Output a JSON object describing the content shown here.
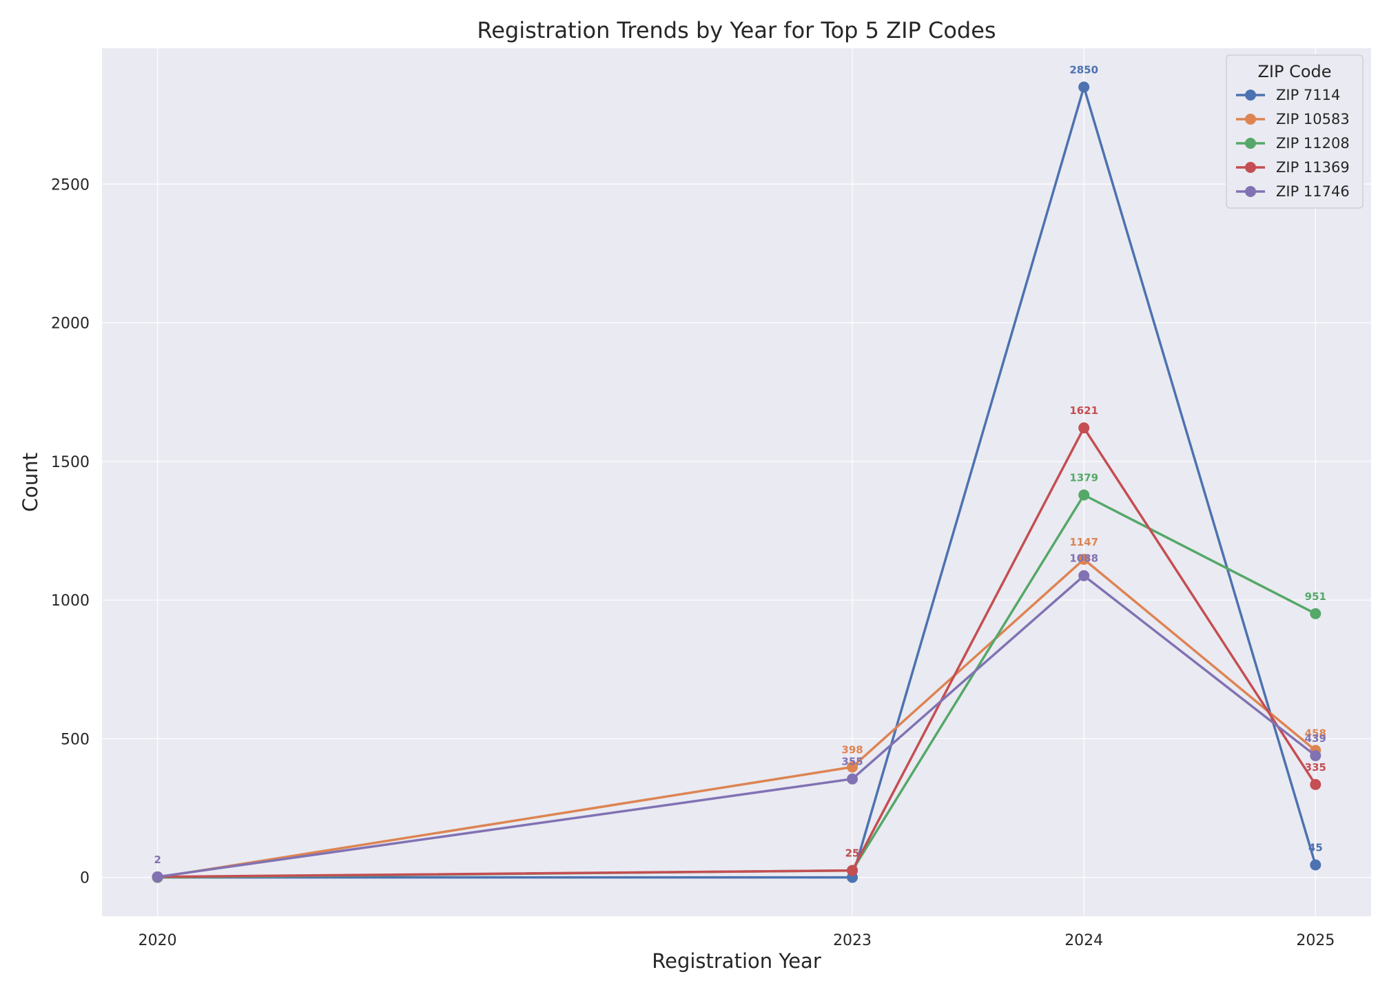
{
  "chart_data": {
    "type": "line",
    "title": "Registration Trends by Year for Top 5 ZIP Codes",
    "xlabel": "Registration Year",
    "ylabel": "Count",
    "x": [
      2020,
      2023,
      2024,
      2025
    ],
    "x_tick_labels": [
      "2020",
      "2023",
      "2024",
      "2025"
    ],
    "xlim": [
      2019.76,
      2025.24
    ],
    "ylim": [
      -140,
      2990
    ],
    "y_ticks": [
      0,
      500,
      1000,
      1500,
      2000,
      2500
    ],
    "y_tick_labels": [
      "0",
      "500",
      "1000",
      "1500",
      "2000",
      "2500"
    ],
    "grid": true,
    "legend": {
      "title": "ZIP Code",
      "position": "top-right"
    },
    "series": [
      {
        "name": "ZIP 7114",
        "color": "#4c72b0",
        "x": [
          2020,
          2023,
          2024,
          2025
        ],
        "values": [
          0,
          0,
          2850,
          45
        ],
        "labels": [
          "",
          "",
          "2850",
          "45"
        ]
      },
      {
        "name": "ZIP 10583",
        "color": "#dd8452",
        "x": [
          2020,
          2023,
          2024,
          2025
        ],
        "values": [
          0,
          398,
          1147,
          458
        ],
        "labels": [
          "",
          "398",
          "1147",
          "458"
        ]
      },
      {
        "name": "ZIP 11208",
        "color": "#55a868",
        "x": [
          2020,
          2023,
          2024,
          2025
        ],
        "values": [
          0,
          25,
          1379,
          951
        ],
        "labels": [
          "",
          "25",
          "1379",
          "951"
        ]
      },
      {
        "name": "ZIP 11369",
        "color": "#c44e52",
        "x": [
          2020,
          2023,
          2024,
          2025
        ],
        "values": [
          2,
          25,
          1621,
          335
        ],
        "labels": [
          "",
          "25",
          "1621",
          "335"
        ]
      },
      {
        "name": "ZIP 11746",
        "color": "#8172b3",
        "x": [
          2020,
          2023,
          2024,
          2025
        ],
        "values": [
          2,
          355,
          1088,
          439
        ],
        "labels": [
          "2",
          "355",
          "1088",
          "439"
        ]
      }
    ]
  }
}
